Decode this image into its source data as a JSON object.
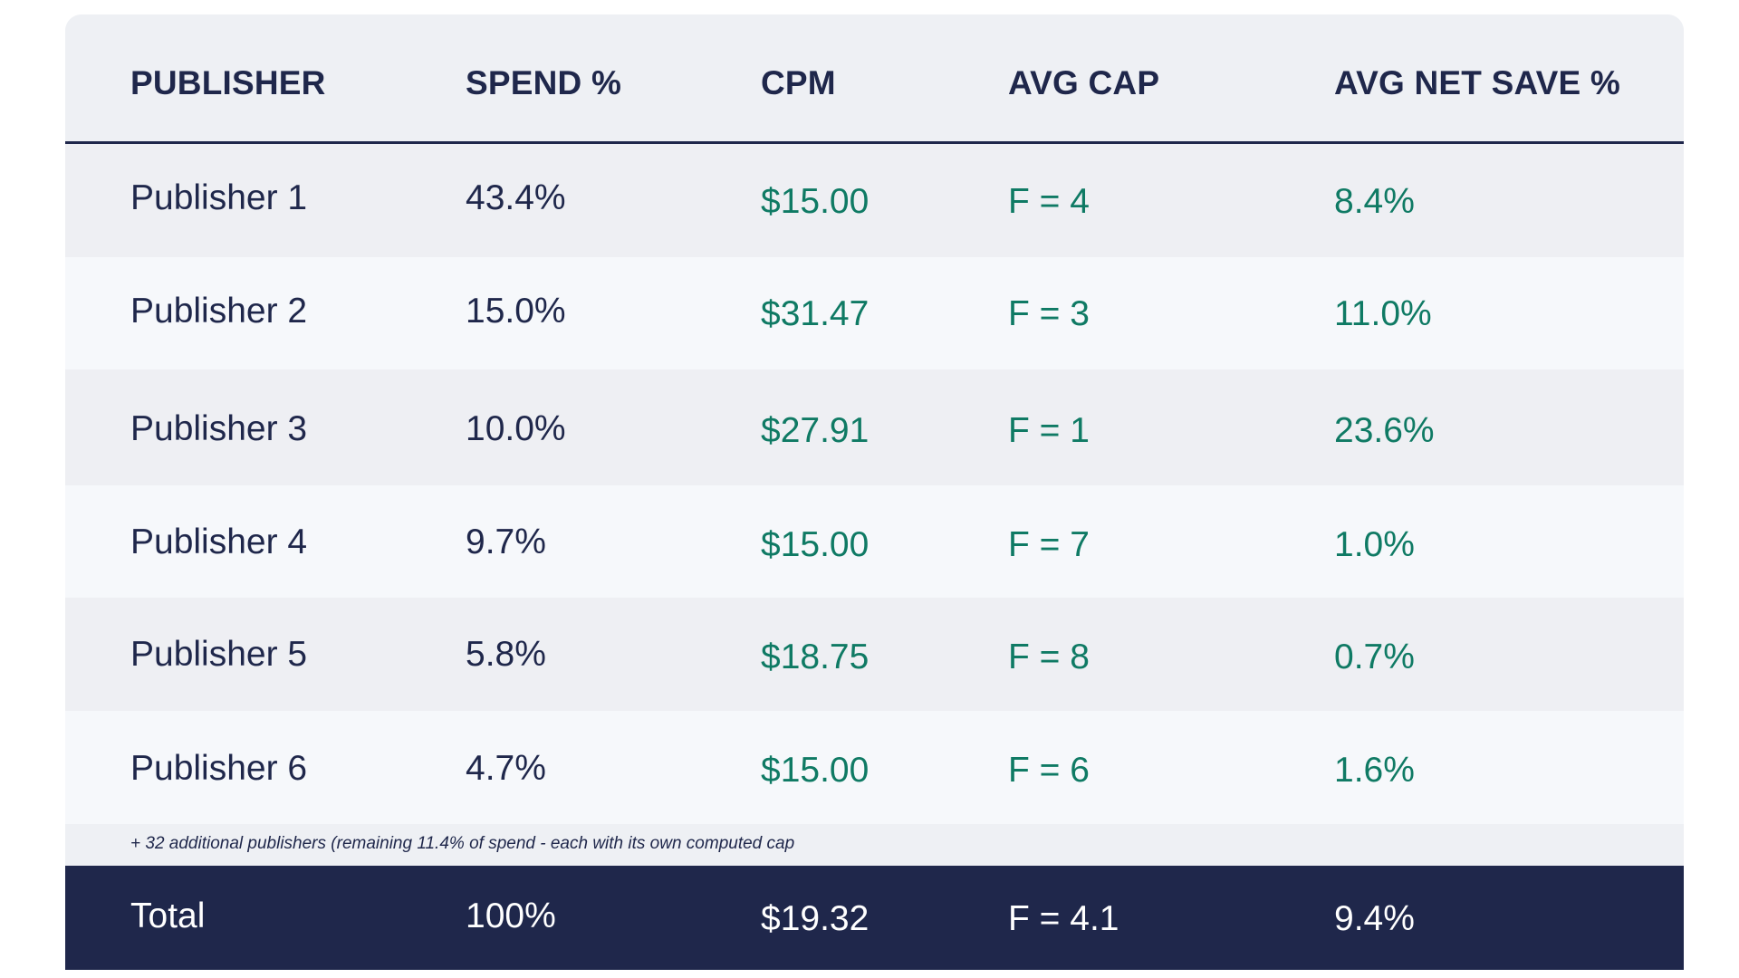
{
  "table": {
    "headers": [
      "PUBLISHER",
      "SPEND %",
      "CPM",
      "AVG CAP",
      "AVG NET SAVE %"
    ],
    "rows": [
      {
        "publisher": "Publisher 1",
        "spend": "43.4%",
        "cpm": "$15.00",
        "cap": "F = 4",
        "net_save": "8.4%"
      },
      {
        "publisher": "Publisher 2",
        "spend": "15.0%",
        "cpm": "$31.47",
        "cap": "F = 3",
        "net_save": "11.0%"
      },
      {
        "publisher": "Publisher 3",
        "spend": "10.0%",
        "cpm": "$27.91",
        "cap": "F = 1",
        "net_save": "23.6%"
      },
      {
        "publisher": "Publisher 4",
        "spend": "9.7%",
        "cpm": "$15.00",
        "cap": "F = 7",
        "net_save": "1.0%"
      },
      {
        "publisher": "Publisher 5",
        "spend": "5.8%",
        "cpm": "$18.75",
        "cap": "F = 8",
        "net_save": "0.7%"
      },
      {
        "publisher": "Publisher 6",
        "spend": "4.7%",
        "cpm": "$15.00",
        "cap": "F = 6",
        "net_save": "1.6%"
      }
    ],
    "note": "+ 32 additional publishers (remaining 11.4% of spend - each with its own computed cap",
    "total": {
      "label": "Total",
      "spend": "100%",
      "cpm": "$19.32",
      "cap": "F = 4.1",
      "net_save": "9.4%"
    }
  },
  "colors": {
    "navy": "#1f274b",
    "green": "#0f7a64",
    "row_light": "#f6f8fb",
    "row_gray": "#eeeff3"
  }
}
